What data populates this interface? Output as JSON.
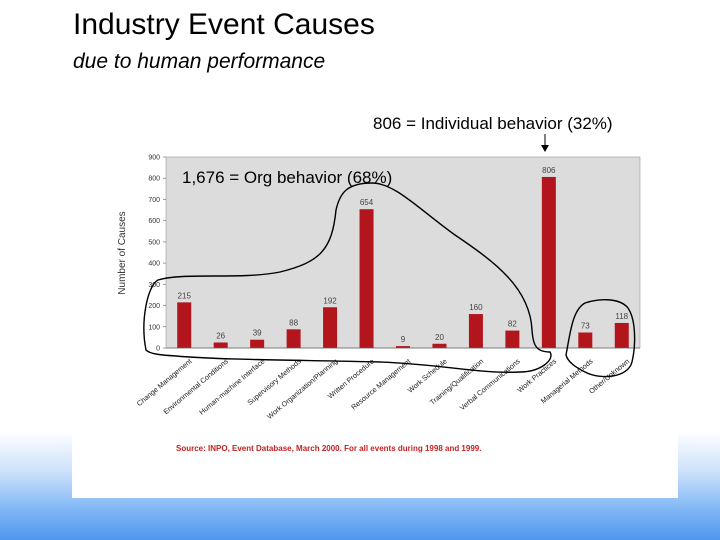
{
  "slide": {
    "title": "Industry Event Causes",
    "subtitle": "due to human performance"
  },
  "annotations": {
    "individual": "806 = Individual behavior (32%)",
    "organizational": "1,676 = Org behavior (68%)"
  },
  "chart_data": {
    "type": "bar",
    "ylabel": "Number of Causes",
    "ylim": [
      0,
      900
    ],
    "yticks": [
      0,
      100,
      200,
      300,
      400,
      500,
      600,
      700,
      800,
      900
    ],
    "categories": [
      "Change Management",
      "Environmental Conditions",
      "Human-machine Interface",
      "Supervisory Methods",
      "Work Organization/Planning",
      "Written Procedure",
      "Resource Management",
      "Work Schedule",
      "Training/Qualification",
      "Verbal Communications",
      "Work Practices",
      "Managerial Methods",
      "Other/Unknown"
    ],
    "values": [
      215,
      26,
      39,
      88,
      192,
      654,
      9,
      20,
      160,
      82,
      806,
      73,
      118
    ],
    "source": "Source: INPO, Event Database, March 2000. For all events during 1998 and 1999.",
    "colors": {
      "bar": "#b3151c",
      "plot_bg": "#dcdcdc",
      "source": "#c22222"
    }
  }
}
